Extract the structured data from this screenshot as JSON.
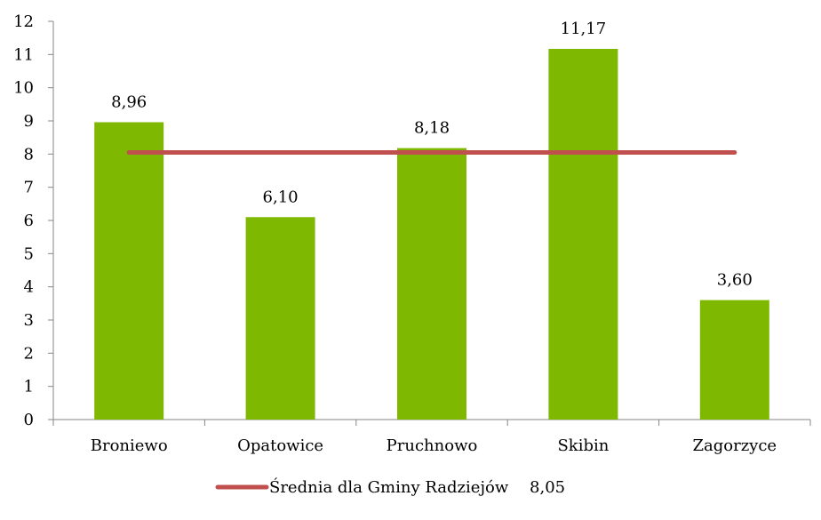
{
  "chart_data": {
    "type": "bar",
    "categories": [
      "Broniewo",
      "Opatowice",
      "Pruchnowo",
      "Skibin",
      "Zagorzyce"
    ],
    "values": [
      8.96,
      6.1,
      8.18,
      11.17,
      3.6
    ],
    "data_labels": [
      "8,96",
      "6,10",
      "8,18",
      "11,17",
      "3,60"
    ],
    "y_ticks": [
      "0",
      "1",
      "2",
      "3",
      "4",
      "5",
      "6",
      "7",
      "8",
      "9",
      "10",
      "11",
      "12"
    ],
    "ylim": [
      0,
      12
    ],
    "bar_color": "#7fb800",
    "grid": false,
    "reference_line": {
      "name": "Średnia dla Gminy Radziejów",
      "value": 8.05,
      "value_label": "8,05",
      "color": "#c0504d"
    },
    "legend": {
      "placement": "bottom-center"
    },
    "title": "",
    "xlabel": "",
    "ylabel": ""
  }
}
